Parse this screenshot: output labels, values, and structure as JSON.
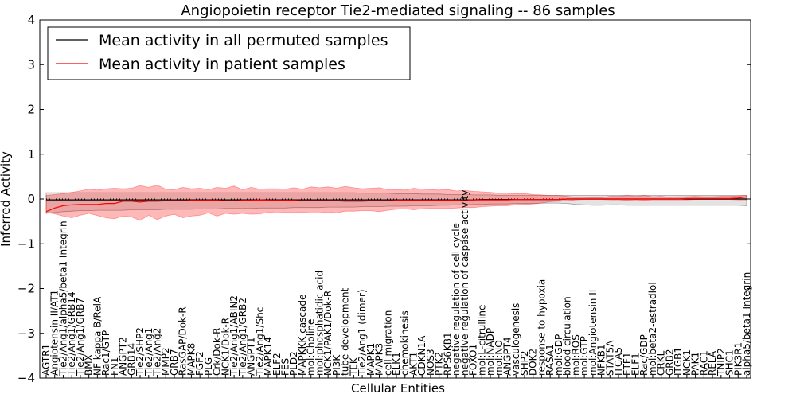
{
  "chart_data": {
    "type": "line",
    "title": "Angiopoietin receptor Tie2-mediated signaling -- 86 samples",
    "xlabel": "Cellular Entities",
    "ylabel": "Inferred Activity",
    "ylim": [
      -4,
      4
    ],
    "yticks": [
      -4,
      -3,
      -2,
      -1,
      0,
      1,
      2,
      3,
      4
    ],
    "grid": false,
    "legend_position": "top-left",
    "categories": [
      "AGTR1",
      "Angiotensin II/AT1",
      "Tie2/Ang1/alpha5/beta1 Integrin",
      "Tie2/Ang1/GRB14",
      "Tie2/Ang1/GRB7",
      "BMX",
      "NF kappa B/RelA",
      "Rac1/GTP",
      "FN1",
      "ANGPT2",
      "GRB14",
      "Tie2/SHP2",
      "Tie2/Ang1",
      "Tie2/Ang2",
      "MMP2",
      "GRB7",
      "RasGAP/Dok-R",
      "MAPK8",
      "FGF2",
      "PLG",
      "Crk/Dok-R",
      "NCK1/Dok-R",
      "Tie2/Ang1/ABIN2",
      "Tie2/Ang1/GRB2",
      "ANGPT1",
      "Tie2/Ang1/Shc",
      "MAPK14",
      "ELF2",
      "FES",
      "PLD2",
      "MAPKKK cascade",
      "mol:Choline",
      "mol:phosphatidic acid",
      "NCK1/PAK1/Dok-R",
      "PI3K",
      "tube development",
      "TEK",
      "Tie2/Ang1 (dimer)",
      "MAPK1",
      "MAPK3",
      "cell migration",
      "ELK1",
      "chemokinesis",
      "AKT1",
      "CDKN1A",
      "NOS3",
      "PTK2",
      "RPS6KB1",
      "negative regulation of cell cycle",
      "negative regulation of caspase activity",
      "FOXO1",
      "mol:L-citrulline",
      "mol:NADP",
      "mol:NO",
      "ANGPT4",
      "vasculogenesis",
      "SHP2",
      "DOK2",
      "response to hypoxia",
      "RASA1",
      "mol:GDP",
      "blood circulation",
      "mol:ROS",
      "mol:GTP",
      "mol:Angiotensin II",
      "NFKB1",
      "STAT5A",
      "ITGA5",
      "ETF1",
      "ELF1",
      "Rac/GDP",
      "mol:beta2-estradiol",
      "CRKL",
      "GRB2",
      "ITGB1",
      "NCK1",
      "PAK1",
      "RAC1",
      "RELA",
      "TNIP2",
      "SHC1",
      "PIK3R1",
      "alpha5/beta1 Integrin"
    ],
    "series": [
      {
        "name": "Mean activity in all permuted samples",
        "color": "#000000",
        "values": [
          -0.02,
          -0.02,
          -0.02,
          -0.02,
          -0.02,
          -0.02,
          -0.02,
          -0.02,
          -0.02,
          -0.02,
          -0.02,
          -0.02,
          -0.02,
          -0.02,
          -0.02,
          -0.02,
          -0.02,
          -0.02,
          -0.02,
          -0.02,
          -0.02,
          -0.02,
          -0.02,
          -0.02,
          -0.02,
          -0.02,
          -0.02,
          -0.02,
          -0.02,
          -0.02,
          -0.02,
          -0.02,
          -0.02,
          -0.02,
          -0.02,
          -0.02,
          -0.02,
          -0.02,
          -0.02,
          -0.02,
          -0.02,
          -0.02,
          -0.02,
          -0.02,
          -0.02,
          -0.02,
          -0.02,
          -0.02,
          -0.02,
          -0.02,
          -0.02,
          -0.01,
          -0.01,
          -0.01,
          -0.01,
          -0.01,
          -0.01,
          -0.01,
          -0.01,
          -0.01,
          -0.01,
          0.0,
          0.0,
          0.0,
          0.0,
          0.0,
          0.0,
          0.0,
          0.0,
          0.0,
          0.0,
          0.0,
          0.0,
          0.0,
          0.0,
          0.0,
          0.0,
          0.0,
          0.0,
          0.0,
          0.0,
          0.0,
          0.0
        ],
        "lower": [
          -0.32,
          -0.3,
          -0.28,
          -0.27,
          -0.26,
          -0.26,
          -0.25,
          -0.25,
          -0.25,
          -0.25,
          -0.24,
          -0.24,
          -0.24,
          -0.24,
          -0.23,
          -0.23,
          -0.23,
          -0.23,
          -0.22,
          -0.22,
          -0.22,
          -0.21,
          -0.21,
          -0.21,
          -0.21,
          -0.2,
          -0.2,
          -0.2,
          -0.2,
          -0.19,
          -0.19,
          -0.19,
          -0.19,
          -0.18,
          -0.18,
          -0.18,
          -0.18,
          -0.17,
          -0.17,
          -0.17,
          -0.16,
          -0.16,
          -0.16,
          -0.15,
          -0.15,
          -0.15,
          -0.14,
          -0.14,
          -0.13,
          -0.13,
          -0.12,
          -0.12,
          -0.11,
          -0.11,
          -0.11,
          -0.1,
          -0.1,
          -0.1,
          -0.09,
          -0.09,
          -0.09,
          -0.1,
          -0.12,
          -0.13,
          -0.14,
          -0.14,
          -0.13,
          -0.13,
          -0.14,
          -0.14,
          -0.14,
          -0.14,
          -0.14,
          -0.14,
          -0.14,
          -0.14,
          -0.14,
          -0.14,
          -0.14,
          -0.14,
          -0.14,
          -0.14,
          -0.15
        ],
        "upper": [
          0.14,
          0.14,
          0.14,
          0.14,
          0.14,
          0.14,
          0.14,
          0.14,
          0.14,
          0.14,
          0.14,
          0.14,
          0.14,
          0.14,
          0.14,
          0.14,
          0.14,
          0.14,
          0.14,
          0.14,
          0.14,
          0.14,
          0.14,
          0.14,
          0.14,
          0.14,
          0.14,
          0.14,
          0.14,
          0.14,
          0.14,
          0.14,
          0.14,
          0.14,
          0.14,
          0.14,
          0.14,
          0.13,
          0.13,
          0.13,
          0.13,
          0.12,
          0.12,
          0.12,
          0.11,
          0.11,
          0.11,
          0.1,
          0.1,
          0.1,
          0.09,
          0.09,
          0.09,
          0.08,
          0.08,
          0.08,
          0.08,
          0.08,
          0.08,
          0.08,
          0.08,
          0.08,
          0.08,
          0.08,
          0.08,
          0.08,
          0.08,
          0.08,
          0.08,
          0.08,
          0.08,
          0.08,
          0.08,
          0.08,
          0.08,
          0.08,
          0.08,
          0.08,
          0.08,
          0.08,
          0.08,
          0.08,
          0.08
        ]
      },
      {
        "name": "Mean activity in patient samples",
        "color": "#ff0000",
        "values": [
          -0.28,
          -0.2,
          -0.15,
          -0.13,
          -0.12,
          -0.12,
          -0.12,
          -0.1,
          -0.1,
          -0.05,
          -0.05,
          -0.07,
          -0.05,
          -0.05,
          -0.04,
          -0.04,
          -0.04,
          -0.03,
          -0.03,
          -0.03,
          -0.03,
          -0.04,
          -0.04,
          -0.03,
          -0.03,
          -0.02,
          -0.03,
          -0.03,
          -0.03,
          -0.03,
          -0.04,
          -0.04,
          -0.04,
          -0.04,
          -0.04,
          -0.05,
          -0.05,
          -0.05,
          -0.04,
          -0.04,
          -0.04,
          -0.03,
          -0.03,
          -0.03,
          -0.03,
          -0.03,
          -0.03,
          -0.03,
          -0.03,
          -0.03,
          -0.02,
          -0.02,
          -0.02,
          -0.02,
          -0.02,
          -0.01,
          -0.01,
          -0.01,
          -0.01,
          -0.01,
          -0.01,
          0.0,
          0.0,
          0.0,
          0.0,
          0.0,
          0.0,
          0.0,
          0.0,
          0.0,
          0.0,
          0.0,
          0.0,
          0.0,
          0.0,
          0.01,
          0.01,
          0.01,
          0.01,
          0.01,
          0.01,
          0.02,
          0.05
        ],
        "lower": [
          -0.3,
          -0.33,
          -0.38,
          -0.42,
          -0.36,
          -0.32,
          -0.37,
          -0.42,
          -0.44,
          -0.38,
          -0.4,
          -0.48,
          -0.36,
          -0.46,
          -0.38,
          -0.34,
          -0.42,
          -0.38,
          -0.36,
          -0.31,
          -0.38,
          -0.32,
          -0.34,
          -0.32,
          -0.34,
          -0.33,
          -0.3,
          -0.31,
          -0.3,
          -0.3,
          -0.3,
          -0.31,
          -0.31,
          -0.29,
          -0.31,
          -0.27,
          -0.27,
          -0.26,
          -0.26,
          -0.28,
          -0.25,
          -0.23,
          -0.22,
          -0.24,
          -0.22,
          -0.21,
          -0.21,
          -0.21,
          -0.2,
          -0.19,
          -0.19,
          -0.17,
          -0.16,
          -0.15,
          -0.15,
          -0.13,
          -0.12,
          -0.11,
          -0.09,
          -0.06,
          -0.05,
          -0.04,
          -0.02,
          -0.01,
          -0.01,
          -0.01,
          -0.02,
          -0.02,
          -0.03,
          -0.02,
          -0.03,
          -0.02,
          -0.02,
          -0.02,
          -0.02,
          -0.02,
          -0.01,
          -0.01,
          -0.01,
          -0.01,
          -0.01,
          -0.02,
          -0.02
        ],
        "upper": [
          0.08,
          0.1,
          0.12,
          0.15,
          0.18,
          0.22,
          0.2,
          0.23,
          0.24,
          0.23,
          0.24,
          0.3,
          0.26,
          0.31,
          0.22,
          0.21,
          0.26,
          0.23,
          0.24,
          0.21,
          0.26,
          0.24,
          0.29,
          0.21,
          0.26,
          0.22,
          0.23,
          0.23,
          0.22,
          0.25,
          0.22,
          0.27,
          0.25,
          0.27,
          0.24,
          0.28,
          0.25,
          0.23,
          0.24,
          0.25,
          0.21,
          0.21,
          0.2,
          0.24,
          0.22,
          0.21,
          0.2,
          0.21,
          0.18,
          0.19,
          0.17,
          0.16,
          0.15,
          0.13,
          0.13,
          0.12,
          0.12,
          0.1,
          0.09,
          0.08,
          0.08,
          0.06,
          0.04,
          0.04,
          0.03,
          0.03,
          0.06,
          0.06,
          0.08,
          0.06,
          0.08,
          0.05,
          0.06,
          0.04,
          0.05,
          0.05,
          0.06,
          0.05,
          0.05,
          0.06,
          0.06,
          0.07,
          0.08
        ]
      }
    ]
  }
}
